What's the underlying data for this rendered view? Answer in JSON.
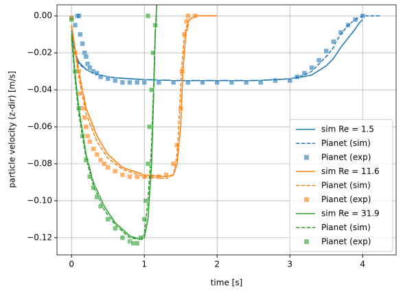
{
  "chart_data": {
    "type": "line",
    "x_label": "time [s]",
    "y_label": "particle velocity (z-dir) [m/s]",
    "xlim": [
      -0.2,
      4.46
    ],
    "ylim": [
      -0.1293,
      0.006
    ],
    "xticks": [
      0,
      1,
      2,
      3,
      4
    ],
    "yticks": [
      {
        "value": 0,
        "label": "0.00"
      },
      {
        "value": -0.02,
        "label": "−0.02"
      },
      {
        "value": -0.04,
        "label": "−0.04"
      },
      {
        "value": -0.06,
        "label": "−0.06"
      },
      {
        "value": -0.08,
        "label": "−0.08"
      },
      {
        "value": -0.1,
        "label": "−0.10"
      },
      {
        "value": -0.12,
        "label": "−0.12"
      }
    ],
    "grid": true,
    "legend": "lower right",
    "series": [
      {
        "name": "sim Re = 1.5",
        "color": "#1f77b4",
        "style": "solid",
        "x": [
          0,
          0.05,
          0.1,
          0.2,
          0.3,
          0.45,
          0.6,
          0.8,
          1.0,
          1.5,
          2.0,
          2.5,
          2.8,
          3.0,
          3.2,
          3.3,
          3.4,
          3.5,
          3.6,
          3.65,
          3.7,
          3.8,
          3.9,
          3.95,
          4.0
        ],
        "values": [
          -0.008,
          -0.02,
          -0.025,
          -0.029,
          -0.031,
          -0.0325,
          -0.0335,
          -0.034,
          -0.0345,
          -0.035,
          -0.035,
          -0.035,
          -0.0345,
          -0.034,
          -0.0328,
          -0.032,
          -0.0295,
          -0.027,
          -0.023,
          -0.02,
          -0.017,
          -0.012,
          -0.007,
          -0.004,
          -0.002
        ]
      },
      {
        "name": "Pianet (sim)",
        "color": "#1f77b4",
        "style": "dashed",
        "x": [
          0,
          0.05,
          0.1,
          0.2,
          0.3,
          0.45,
          0.6,
          0.8,
          1.0,
          1.5,
          2.0,
          2.5,
          2.8,
          3.0,
          3.2,
          3.3,
          3.4,
          3.5,
          3.6,
          3.65,
          3.7,
          3.8,
          3.9,
          3.95,
          4.0,
          4.25
        ],
        "values": [
          -0.01,
          -0.021,
          -0.026,
          -0.029,
          -0.031,
          -0.0325,
          -0.0335,
          -0.034,
          -0.0345,
          -0.035,
          -0.035,
          -0.035,
          -0.0345,
          -0.034,
          -0.032,
          -0.03,
          -0.026,
          -0.022,
          -0.017,
          -0.013,
          -0.01,
          -0.005,
          -0.002,
          -0.001,
          0,
          0
        ]
      },
      {
        "name": "Pianet (exp)",
        "color": "#1f77b4",
        "style": "markers",
        "x": [
          0.0,
          0.05,
          0.08,
          0.1,
          0.12,
          0.15,
          0.18,
          0.2,
          0.22,
          0.25,
          0.3,
          0.35,
          0.4,
          0.5,
          0.6,
          0.7,
          0.8,
          0.9,
          1.0,
          1.2,
          1.4,
          1.6,
          1.8,
          2.0,
          2.2,
          2.4,
          2.6,
          2.8,
          3.0,
          3.1,
          3.2,
          3.3,
          3.4,
          3.5,
          3.6,
          3.7,
          3.8,
          3.9,
          4.0
        ],
        "values": [
          -0.001,
          -0.005,
          0,
          0,
          -0.01,
          -0.015,
          -0.02,
          -0.022,
          -0.026,
          -0.028,
          -0.03,
          -0.031,
          -0.033,
          -0.034,
          -0.035,
          -0.036,
          -0.036,
          -0.036,
          -0.036,
          -0.036,
          -0.036,
          -0.036,
          -0.036,
          -0.036,
          -0.036,
          -0.036,
          -0.036,
          -0.035,
          -0.035,
          -0.033,
          -0.031,
          -0.028,
          -0.024,
          -0.019,
          -0.014,
          -0.009,
          -0.005,
          -0.002,
          0
        ]
      },
      {
        "name": "sim Re = 11.6",
        "color": "#ff7f0e",
        "style": "solid",
        "x": [
          0,
          0.05,
          0.1,
          0.2,
          0.35,
          0.5,
          0.7,
          1.0,
          1.3,
          1.4,
          1.45,
          1.5,
          1.53,
          1.57,
          1.62,
          1.7,
          2.0
        ],
        "values": [
          -0.005,
          -0.018,
          -0.03,
          -0.05,
          -0.065,
          -0.075,
          -0.082,
          -0.086,
          -0.087,
          -0.086,
          -0.08,
          -0.06,
          -0.03,
          -0.01,
          -0.002,
          0,
          0
        ]
      },
      {
        "name": "Pianet (sim)",
        "color": "#ff7f0e",
        "style": "dashed",
        "x": [
          0,
          0.05,
          0.1,
          0.2,
          0.35,
          0.5,
          0.7,
          1.0,
          1.3,
          1.4,
          1.45,
          1.48,
          1.51,
          1.55,
          1.6,
          1.7,
          1.95
        ],
        "values": [
          -0.006,
          -0.02,
          -0.033,
          -0.053,
          -0.068,
          -0.077,
          -0.083,
          -0.087,
          -0.088,
          -0.086,
          -0.075,
          -0.055,
          -0.03,
          -0.01,
          -0.003,
          0,
          0
        ]
      },
      {
        "name": "Pianet (exp)",
        "color": "#ff7f0e",
        "style": "markers",
        "x": [
          0,
          0.05,
          0.1,
          0.12,
          0.15,
          0.18,
          0.2,
          0.22,
          0.25,
          0.3,
          0.35,
          0.4,
          0.45,
          0.5,
          0.6,
          0.7,
          0.8,
          0.9,
          1.0,
          1.1,
          1.2,
          1.3,
          1.4,
          1.45,
          1.5,
          1.52,
          1.55,
          1.58,
          1.6,
          1.7
        ],
        "values": [
          -0.001,
          -0.02,
          -0.03,
          -0.042,
          -0.05,
          -0.055,
          -0.06,
          -0.065,
          -0.068,
          -0.072,
          -0.075,
          -0.078,
          -0.08,
          -0.082,
          -0.084,
          -0.086,
          -0.087,
          -0.087,
          -0.087,
          -0.087,
          -0.087,
          -0.086,
          -0.08,
          -0.07,
          -0.05,
          -0.03,
          -0.01,
          -0.003,
          0,
          0
        ]
      },
      {
        "name": "sim Re = 31.9",
        "color": "#2ca02c",
        "style": "solid",
        "x": [
          0,
          0.05,
          0.1,
          0.2,
          0.3,
          0.45,
          0.6,
          0.8,
          0.95,
          1.0,
          1.05,
          1.1,
          1.13,
          1.15,
          1.17
        ],
        "values": [
          -0.01,
          -0.032,
          -0.05,
          -0.075,
          -0.09,
          -0.103,
          -0.112,
          -0.119,
          -0.121,
          -0.12,
          -0.11,
          -0.08,
          -0.04,
          -0.01,
          0.006
        ]
      },
      {
        "name": "Pianet (sim)",
        "color": "#2ca02c",
        "style": "dashed",
        "x": [
          0,
          0.05,
          0.1,
          0.2,
          0.3,
          0.45,
          0.6,
          0.8,
          0.95,
          1.0,
          1.05,
          1.1,
          1.13,
          1.15,
          1.17
        ],
        "values": [
          -0.012,
          -0.035,
          -0.053,
          -0.077,
          -0.092,
          -0.105,
          -0.113,
          -0.12,
          -0.121,
          -0.118,
          -0.1,
          -0.07,
          -0.035,
          -0.008,
          0
        ]
      },
      {
        "name": "Pianet (exp)",
        "color": "#2ca02c",
        "style": "markers",
        "x": [
          0,
          0.05,
          0.1,
          0.15,
          0.2,
          0.25,
          0.3,
          0.35,
          0.4,
          0.5,
          0.6,
          0.7,
          0.8,
          0.85,
          0.9,
          0.95,
          1.0,
          1.02,
          1.05,
          1.07,
          1.1,
          1.12,
          1.15,
          1.05
        ],
        "values": [
          -0.002,
          -0.03,
          -0.05,
          -0.065,
          -0.078,
          -0.087,
          -0.093,
          -0.098,
          -0.103,
          -0.11,
          -0.115,
          -0.12,
          -0.122,
          -0.123,
          -0.123,
          -0.12,
          -0.11,
          -0.1,
          -0.08,
          -0.06,
          -0.04,
          -0.02,
          -0.005,
          0
        ]
      }
    ]
  }
}
